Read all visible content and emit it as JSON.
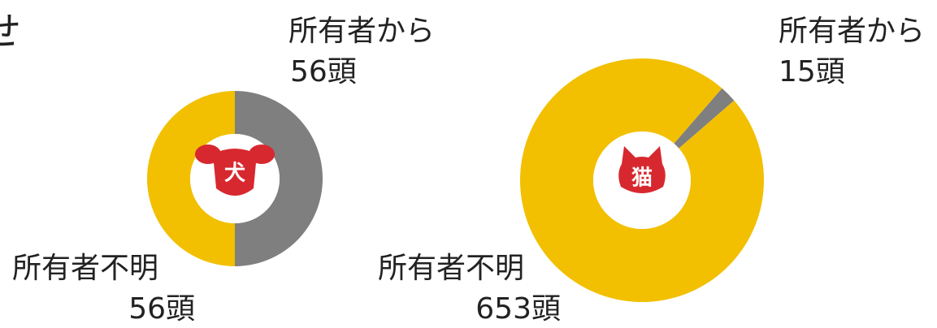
{
  "fragment": "せ",
  "chart_data": [
    {
      "type": "donut",
      "title": "犬",
      "categories": [
        "所有者から",
        "所有者不明"
      ],
      "values": [
        56,
        56
      ],
      "value_labels": [
        "56頭",
        "56頭"
      ],
      "colors": [
        "#7f7f7f",
        "#f2c000"
      ]
    },
    {
      "type": "donut",
      "title": "猫",
      "categories": [
        "所有者から",
        "所有者不明"
      ],
      "values": [
        15,
        653
      ],
      "value_labels": [
        "15頭",
        "653頭"
      ],
      "colors": [
        "#7f7f7f",
        "#f2c000"
      ]
    }
  ]
}
